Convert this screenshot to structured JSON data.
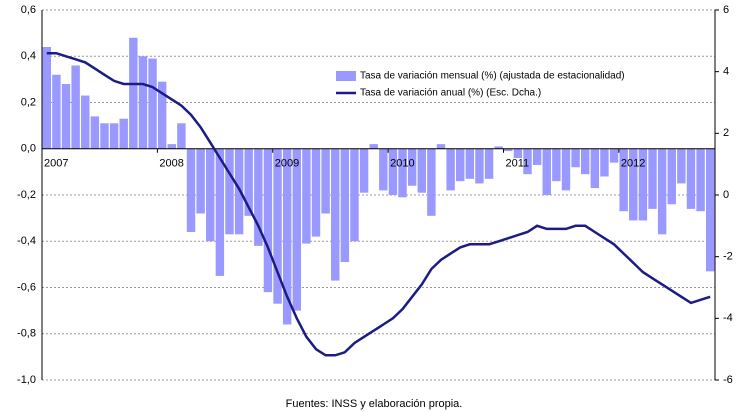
{
  "chart_data": {
    "type": "bar_line",
    "categories": [
      "2007",
      null,
      null,
      null,
      null,
      null,
      null,
      null,
      null,
      null,
      null,
      null,
      "2008",
      null,
      null,
      null,
      null,
      null,
      null,
      null,
      null,
      null,
      null,
      null,
      "2009",
      null,
      null,
      null,
      null,
      null,
      null,
      null,
      null,
      null,
      null,
      null,
      "2010",
      null,
      null,
      null,
      null,
      null,
      null,
      null,
      null,
      null,
      null,
      null,
      "2011",
      null,
      null,
      null,
      null,
      null,
      null,
      null,
      null,
      null,
      null,
      null,
      "2012",
      null,
      null,
      null,
      null,
      null,
      null,
      null,
      null,
      null
    ],
    "series": [
      {
        "name": "Tasa de variación mensual (%) (ajustada de estacionalidad)",
        "type": "bar",
        "color": "#9999ff",
        "values": [
          0.44,
          0.32,
          0.28,
          0.36,
          0.23,
          0.14,
          0.11,
          0.11,
          0.13,
          0.48,
          0.4,
          0.39,
          0.29,
          0.02,
          0.11,
          -0.36,
          -0.28,
          -0.4,
          -0.55,
          -0.37,
          -0.37,
          -0.29,
          -0.42,
          -0.62,
          -0.67,
          -0.76,
          -0.7,
          -0.41,
          -0.38,
          -0.28,
          -0.57,
          -0.49,
          -0.4,
          -0.19,
          0.02,
          -0.18,
          -0.2,
          -0.21,
          -0.16,
          -0.19,
          -0.29,
          0.02,
          -0.18,
          -0.14,
          -0.13,
          -0.15,
          -0.13,
          0.01,
          -0.01,
          -0.04,
          -0.11,
          -0.07,
          -0.2,
          -0.14,
          -0.18,
          -0.08,
          -0.11,
          -0.17,
          -0.12,
          -0.06,
          -0.27,
          -0.31,
          -0.31,
          -0.26,
          -0.37,
          -0.24,
          -0.15,
          -0.26,
          -0.27,
          -0.53
        ]
      },
      {
        "name": "Tasa de variación anual (%) (Esc. Dcha.)",
        "type": "line",
        "axis": "y2",
        "color": "#1c1c84",
        "values": [
          4.6,
          4.6,
          4.5,
          4.4,
          4.3,
          4.1,
          3.9,
          3.7,
          3.6,
          3.6,
          3.6,
          3.5,
          3.3,
          3.1,
          2.9,
          2.6,
          2.2,
          1.7,
          1.2,
          0.7,
          0.2,
          -0.4,
          -1.0,
          -1.7,
          -2.5,
          -3.3,
          -4.0,
          -4.6,
          -5.0,
          -5.2,
          -5.2,
          -5.1,
          -4.8,
          -4.6,
          -4.4,
          -4.2,
          -4.0,
          -3.7,
          -3.3,
          -2.9,
          -2.4,
          -2.1,
          -1.9,
          -1.7,
          -1.6,
          -1.6,
          -1.6,
          -1.5,
          -1.4,
          -1.3,
          -1.2,
          -1.0,
          -1.1,
          -1.1,
          -1.1,
          -1.0,
          -1.0,
          -1.2,
          -1.4,
          -1.6,
          -1.9,
          -2.2,
          -2.5,
          -2.7,
          -2.9,
          -3.1,
          -3.3,
          -3.5,
          -3.4,
          -3.3
        ]
      }
    ],
    "ylim": [
      -1.0,
      0.6
    ],
    "yticks": [
      {
        "value": 0.6,
        "label": "0,6"
      },
      {
        "value": 0.4,
        "label": "0,4"
      },
      {
        "value": 0.2,
        "label": "0,2"
      },
      {
        "value": 0,
        "label": "0,0"
      },
      {
        "value": -0.2,
        "label": "-0,2"
      },
      {
        "value": -0.4,
        "label": "-0,4"
      },
      {
        "value": -0.6,
        "label": "-0,6"
      },
      {
        "value": -0.8,
        "label": "-0,8"
      },
      {
        "value": -1.0,
        "label": "-1,0"
      }
    ],
    "y2lim": [
      -6,
      6
    ],
    "y2ticks": [
      6,
      4,
      2,
      0,
      -2,
      -4,
      -6
    ],
    "grid": true,
    "legend": "top-right",
    "source": "Fuentes: INSS y elaboración propia."
  }
}
